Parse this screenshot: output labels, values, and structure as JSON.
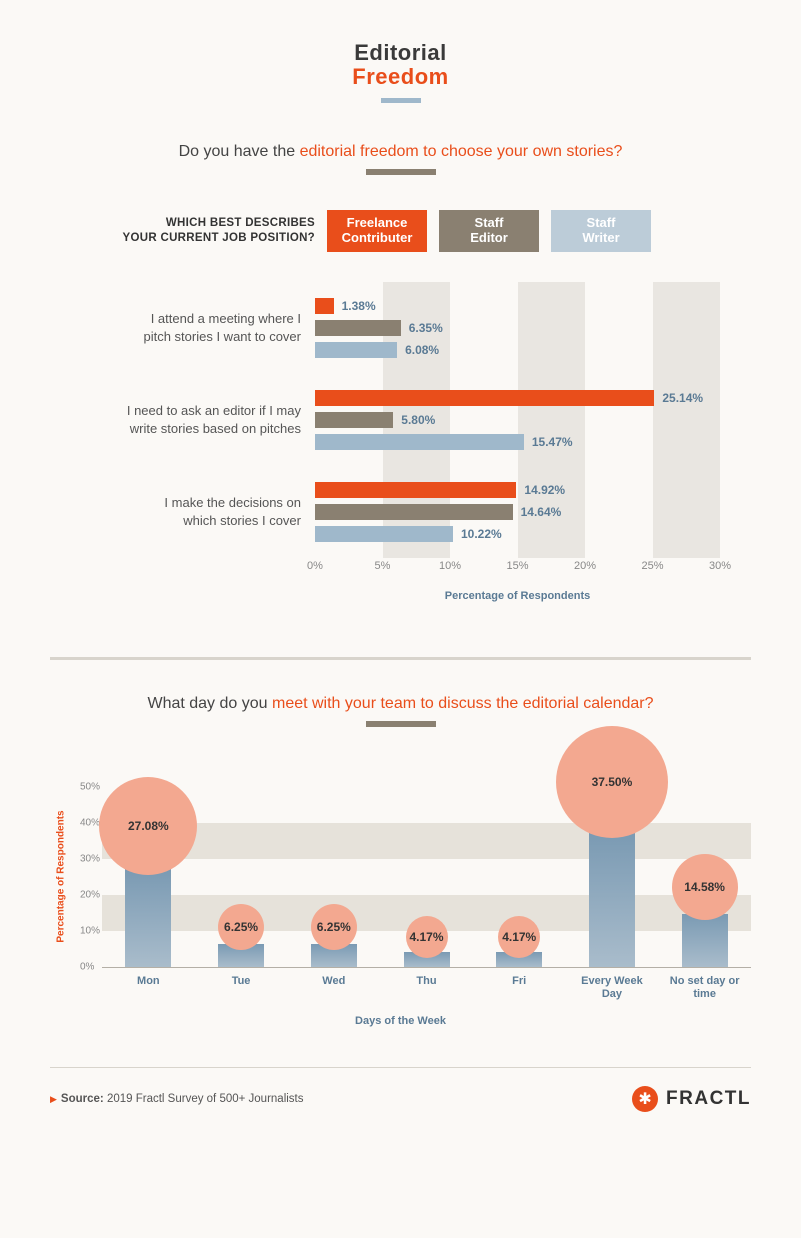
{
  "title": {
    "line1": "Editorial",
    "line2": "Freedom"
  },
  "colors": {
    "orange": "#e94e1b",
    "taupe": "#8a8071",
    "blue": "#9fb8cb",
    "blue_light": "#bcccd8",
    "bubble": "#f3a890",
    "text_blue": "#5a7a94",
    "background": "#fbf9f6"
  },
  "chart1": {
    "question_prefix": "Do you have the ",
    "question_emph": "editorial freedom to choose your own stories?",
    "legend_prompt_l1": "WHICH BEST DESCRIBES",
    "legend_prompt_l2": "YOUR CURRENT JOB POSITION?",
    "legend": {
      "freelance_l1": "Freelance",
      "freelance_l2": "Contributer",
      "staff_editor_l1": "Staff",
      "staff_editor_l2": "Editor",
      "staff_writer_l1": "Staff",
      "staff_writer_l2": "Writer"
    },
    "x_max": 30,
    "x_ticks": [
      "0%",
      "5%",
      "10%",
      "15%",
      "20%",
      "25%",
      "30%"
    ],
    "x_tick_values": [
      0,
      5,
      10,
      15,
      20,
      25,
      30
    ],
    "x_label": "Percentage of Respondents",
    "groups": [
      {
        "label_l1": "I attend a meeting where I",
        "label_l2": "pitch stories I want to cover",
        "bars": [
          {
            "series": "free",
            "value": 1.38,
            "label": "1.38%"
          },
          {
            "series": "staff",
            "value": 6.35,
            "label": "6.35%"
          },
          {
            "series": "writer",
            "value": 6.08,
            "label": "6.08%"
          }
        ]
      },
      {
        "label_l1": "I need to ask an editor if I may",
        "label_l2": "write stories based on pitches",
        "bars": [
          {
            "series": "free",
            "value": 25.14,
            "label": "25.14%"
          },
          {
            "series": "staff",
            "value": 5.8,
            "label": "5.80%"
          },
          {
            "series": "writer",
            "value": 15.47,
            "label": "15.47%"
          }
        ]
      },
      {
        "label_l1": "I make the decisions on",
        "label_l2": "which stories I cover",
        "bars": [
          {
            "series": "free",
            "value": 14.92,
            "label": "14.92%"
          },
          {
            "series": "staff",
            "value": 14.64,
            "label": "14.64%"
          },
          {
            "series": "writer",
            "value": 10.22,
            "label": "10.22%"
          }
        ]
      }
    ]
  },
  "chart2": {
    "question_prefix": "What day do you ",
    "question_emph": "meet with your team to discuss the editorial calendar?",
    "y_label": "Percentage of Respondents",
    "y_max": 50,
    "y_ticks": [
      "0%",
      "10%",
      "20%",
      "30%",
      "40%",
      "50%"
    ],
    "y_tick_values": [
      0,
      10,
      20,
      30,
      40,
      50
    ],
    "x_label": "Days of the Week",
    "bars": [
      {
        "category": "Mon",
        "value": 27.08,
        "label": "27.08%",
        "bubble_d": 98
      },
      {
        "category": "Tue",
        "value": 6.25,
        "label": "6.25%",
        "bubble_d": 46
      },
      {
        "category": "Wed",
        "value": 6.25,
        "label": "6.25%",
        "bubble_d": 46
      },
      {
        "category": "Thu",
        "value": 4.17,
        "label": "4.17%",
        "bubble_d": 42
      },
      {
        "category": "Fri",
        "value": 4.17,
        "label": "4.17%",
        "bubble_d": 42
      },
      {
        "category": "Every Week Day",
        "value": 37.5,
        "label": "37.50%",
        "bubble_d": 112
      },
      {
        "category": "No set day or time",
        "value": 14.58,
        "label": "14.58%",
        "bubble_d": 66
      }
    ]
  },
  "footer": {
    "source_label": "Source:",
    "source_text": " 2019 Fractl Survey of 500+ Journalists",
    "brand": "FRACTL"
  }
}
